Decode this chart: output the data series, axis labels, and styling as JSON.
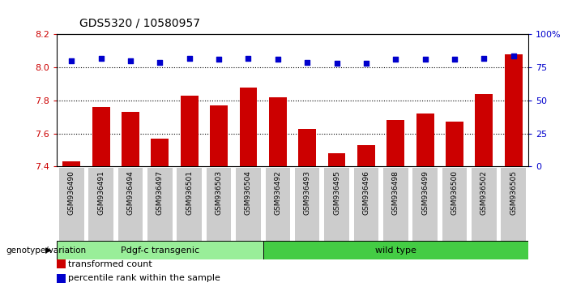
{
  "title": "GDS5320 / 10580957",
  "samples": [
    "GSM936490",
    "GSM936491",
    "GSM936494",
    "GSM936497",
    "GSM936501",
    "GSM936503",
    "GSM936504",
    "GSM936492",
    "GSM936493",
    "GSM936495",
    "GSM936496",
    "GSM936498",
    "GSM936499",
    "GSM936500",
    "GSM936502",
    "GSM936505"
  ],
  "bar_values": [
    7.43,
    7.76,
    7.73,
    7.57,
    7.83,
    7.77,
    7.88,
    7.82,
    7.63,
    7.48,
    7.53,
    7.68,
    7.72,
    7.67,
    7.84,
    8.08
  ],
  "pct_right": [
    80,
    82,
    80,
    79,
    82,
    81,
    82,
    81,
    79,
    78,
    78,
    81,
    81,
    81,
    82,
    84
  ],
  "bar_color": "#cc0000",
  "dot_color": "#0000cc",
  "ylim_left": [
    7.4,
    8.2
  ],
  "ylim_right": [
    0,
    100
  ],
  "yticks_left": [
    7.4,
    7.6,
    7.8,
    8.0,
    8.2
  ],
  "yticks_right": [
    0,
    25,
    50,
    75,
    100
  ],
  "ytick_labels_right": [
    "0",
    "25",
    "50",
    "75",
    "100%"
  ],
  "group1_label": "Pdgf-c transgenic",
  "group2_label": "wild type",
  "group1_count": 7,
  "group2_count": 9,
  "group1_color": "#99ee99",
  "group2_color": "#44cc44",
  "bar_width": 0.6,
  "background_color": "#ffffff",
  "tick_bg_color": "#cccccc",
  "legend_red_label": "transformed count",
  "legend_blue_label": "percentile rank within the sample",
  "genotype_label": "genotype/variation"
}
